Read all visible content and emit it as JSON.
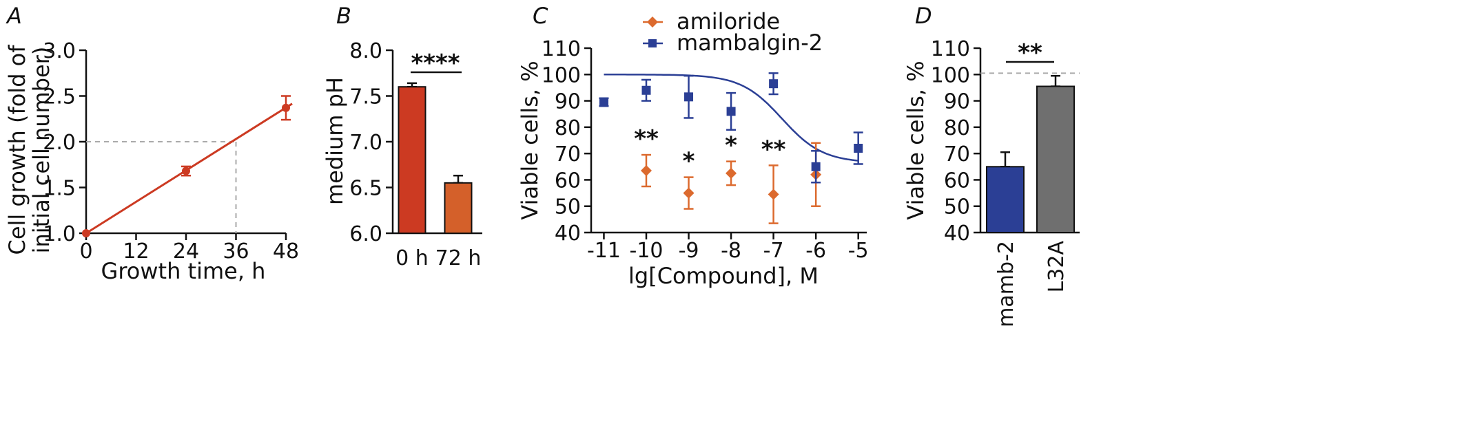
{
  "colors": {
    "red": "#cc3a22",
    "orange": "#d4602a",
    "amiloride": "#dc6a2e",
    "mambalgin": "#2b3f95",
    "gray_bar": "#6f6f6f",
    "dashed": "#aaaaaa"
  },
  "chart_data": [
    {
      "panel": "A",
      "type": "line",
      "xlabel": "Growth time, h",
      "ylabel": [
        "Cell growth (fold of",
        "initial cell number)"
      ],
      "xticks": [
        0,
        12,
        24,
        36,
        48
      ],
      "yticks": [
        "1.0",
        "1.5",
        "2.0",
        "2.5",
        "3.0"
      ],
      "xlim": [
        0,
        48
      ],
      "ylim": [
        1.0,
        3.0
      ],
      "points": [
        {
          "x": 0,
          "y": 1.0,
          "err": 0.0
        },
        {
          "x": 24,
          "y": 1.68,
          "err": 0.05
        },
        {
          "x": 48,
          "y": 2.37,
          "err": 0.13
        }
      ],
      "fit": {
        "slope": 0.0286,
        "intercept": 1.0
      },
      "reference": {
        "x": 36,
        "y": 2.0
      }
    },
    {
      "panel": "B",
      "type": "bar",
      "ylabel": "medium pH",
      "categories": [
        "0 h",
        "72 h"
      ],
      "values": [
        7.6,
        6.55
      ],
      "errors": [
        0.04,
        0.08
      ],
      "yticks": [
        "6.0",
        "6.5",
        "7.0",
        "7.5",
        "8.0"
      ],
      "ylim": [
        6.0,
        8.0
      ],
      "significance": "****"
    },
    {
      "panel": "C",
      "type": "scatter",
      "xlabel": "lg[Compound], M",
      "ylabel": "Viable cells,  %",
      "xticks": [
        "-11",
        "-10",
        "-9",
        "-8",
        "-7",
        "-6",
        "-5"
      ],
      "yticks": [
        "40",
        "50",
        "60",
        "70",
        "80",
        "90",
        "100",
        "110"
      ],
      "xlim": [
        -11.3,
        -4.8
      ],
      "ylim": [
        40,
        110
      ],
      "series": [
        {
          "name": "amiloride",
          "marker": "diamond",
          "x": [
            -10,
            -9,
            -8,
            -7,
            -6
          ],
          "values": [
            63.5,
            55.0,
            62.5,
            54.5,
            62.0
          ],
          "errors": [
            6.0,
            6.0,
            4.5,
            11.0,
            12.0
          ],
          "stars": [
            "**",
            "*",
            "*",
            "**",
            ""
          ]
        },
        {
          "name": "mambalgin-2",
          "marker": "square",
          "x": [
            -11,
            -10,
            -9,
            -8,
            -7,
            -6,
            -5
          ],
          "values": [
            89.5,
            94.0,
            91.5,
            86.0,
            96.5,
            65.0,
            72.0
          ],
          "errors": [
            1.5,
            4.0,
            8.0,
            7.0,
            4.0,
            6.0,
            6.0
          ]
        }
      ],
      "fit": {
        "top": 100,
        "bottom": 66.5,
        "logEC50": -6.8,
        "hill": 0.9
      }
    },
    {
      "panel": "D",
      "type": "bar",
      "ylabel": "Viable cells,  %",
      "categories": [
        "mamb-2",
        "L32A"
      ],
      "values": [
        65.0,
        95.5
      ],
      "errors": [
        5.5,
        4.0
      ],
      "yticks": [
        "40",
        "50",
        "60",
        "70",
        "80",
        "90",
        "100",
        "110"
      ],
      "ylim": [
        40,
        110
      ],
      "reference": 100.5,
      "significance": "**"
    }
  ]
}
